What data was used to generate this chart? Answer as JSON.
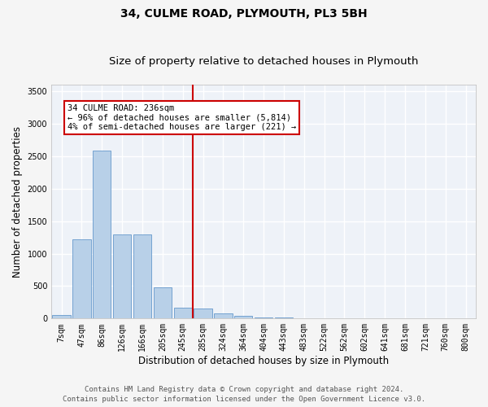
{
  "title1": "34, CULME ROAD, PLYMOUTH, PL3 5BH",
  "title2": "Size of property relative to detached houses in Plymouth",
  "xlabel": "Distribution of detached houses by size in Plymouth",
  "ylabel": "Number of detached properties",
  "footnote1": "Contains HM Land Registry data © Crown copyright and database right 2024.",
  "footnote2": "Contains public sector information licensed under the Open Government Licence v3.0.",
  "bar_labels": [
    "7sqm",
    "47sqm",
    "86sqm",
    "126sqm",
    "166sqm",
    "205sqm",
    "245sqm",
    "285sqm",
    "324sqm",
    "364sqm",
    "404sqm",
    "443sqm",
    "483sqm",
    "522sqm",
    "562sqm",
    "602sqm",
    "641sqm",
    "681sqm",
    "721sqm",
    "760sqm",
    "800sqm"
  ],
  "bar_values": [
    50,
    1220,
    2580,
    1300,
    1300,
    480,
    170,
    150,
    75,
    38,
    18,
    12,
    5,
    2,
    1,
    1,
    0,
    0,
    0,
    0,
    0
  ],
  "bar_color": "#b8d0e8",
  "bar_edgecolor": "#6699cc",
  "vline_index": 6,
  "vline_color": "#cc0000",
  "annotation_text": "34 CULME ROAD: 236sqm\n← 96% of detached houses are smaller (5,814)\n4% of semi-detached houses are larger (221) →",
  "annotation_box_facecolor": "#ffffff",
  "annotation_box_edgecolor": "#cc0000",
  "ylim": [
    0,
    3600
  ],
  "yticks": [
    0,
    500,
    1000,
    1500,
    2000,
    2500,
    3000,
    3500
  ],
  "bg_color": "#eef2f8",
  "grid_color": "#ffffff",
  "title1_fontsize": 10,
  "title2_fontsize": 9.5,
  "footnote_fontsize": 6.5,
  "xlabel_fontsize": 8.5,
  "ylabel_fontsize": 8.5,
  "tick_fontsize": 7,
  "annot_fontsize": 7.5
}
